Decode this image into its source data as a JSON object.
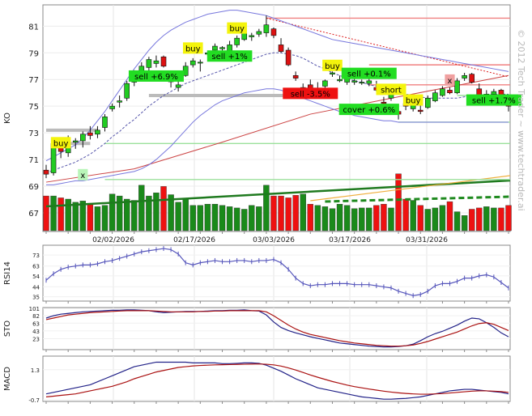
{
  "watermark": "© 2012 Tech Trader ~ www.techtrader.ai",
  "chart_data": [
    {
      "type": "candlestick",
      "panel": "price",
      "ylabel": "KO",
      "x_ticks": [
        "02/02/2026",
        "02/17/2026",
        "03/03/2026",
        "03/17/2026",
        "03/31/2026"
      ],
      "y_ticks": [
        67,
        69,
        71,
        73,
        75,
        77,
        79,
        81
      ],
      "ylim": [
        65.6,
        82.6
      ],
      "candles": [
        [
          70.2,
          70.6,
          69.6,
          69.9
        ],
        [
          70.0,
          72.6,
          69.8,
          72.2
        ],
        [
          72.0,
          72.4,
          71.1,
          71.6
        ],
        [
          71.5,
          72.8,
          71.2,
          72.0
        ],
        [
          72.3,
          72.6,
          71.8,
          72.4
        ],
        [
          72.4,
          73.1,
          71.9,
          72.9
        ],
        [
          73.0,
          73.5,
          72.5,
          72.8
        ],
        [
          72.9,
          73.5,
          72.6,
          73.2
        ],
        [
          73.4,
          74.4,
          73.1,
          74.2
        ],
        [
          74.8,
          75.2,
          74.6,
          75.0
        ],
        [
          75.3,
          75.8,
          74.9,
          75.4
        ],
        [
          75.6,
          76.9,
          75.4,
          76.7
        ],
        [
          76.8,
          77.7,
          76.5,
          77.6
        ],
        [
          77.3,
          78.3,
          77.0,
          78.0
        ],
        [
          77.9,
          78.7,
          77.6,
          78.5
        ],
        [
          78.2,
          78.8,
          77.9,
          78.4
        ],
        [
          78.7,
          78.8,
          77.9,
          78.0
        ],
        [
          76.9,
          77.4,
          76.4,
          76.9
        ],
        [
          76.4,
          77.3,
          76.1,
          76.6
        ],
        [
          77.3,
          78.3,
          77.2,
          78.0
        ],
        [
          78.1,
          78.6,
          77.9,
          78.4
        ],
        [
          78.3,
          78.5,
          77.6,
          78.3
        ],
        [
          78.9,
          79.1,
          78.8,
          79.0
        ],
        [
          79.2,
          79.7,
          79.1,
          79.5
        ],
        [
          79.3,
          79.5,
          79.0,
          79.4
        ],
        [
          79.1,
          79.9,
          79.0,
          79.6
        ],
        [
          79.6,
          80.3,
          79.4,
          80.1
        ],
        [
          80.0,
          80.7,
          79.9,
          80.5
        ],
        [
          80.2,
          80.5,
          79.9,
          80.3
        ],
        [
          80.4,
          80.8,
          80.2,
          80.6
        ],
        [
          80.5,
          81.8,
          80.2,
          81.1
        ],
        [
          80.8,
          80.9,
          80.1,
          80.3
        ],
        [
          79.6,
          80.1,
          79.0,
          79.1
        ],
        [
          79.2,
          79.4,
          78.0,
          78.1
        ],
        [
          77.3,
          77.6,
          76.9,
          77.1
        ],
        [
          75.9,
          76.7,
          75.7,
          76.4
        ],
        [
          76.6,
          77.0,
          76.1,
          76.3
        ],
        [
          75.9,
          76.8,
          75.6,
          76.1
        ],
        [
          76.5,
          77.0,
          76.3,
          76.9
        ],
        [
          77.4,
          77.6,
          77.2,
          77.5
        ],
        [
          76.9,
          77.3,
          76.8,
          77.0
        ],
        [
          76.8,
          77.3,
          76.6,
          77.2
        ],
        [
          76.8,
          77.1,
          76.6,
          76.9
        ],
        [
          76.8,
          77.0,
          76.6,
          76.8
        ],
        [
          76.7,
          77.1,
          76.5,
          76.9
        ],
        [
          76.4,
          76.9,
          76.1,
          76.2
        ],
        [
          75.3,
          75.7,
          75.0,
          75.2
        ],
        [
          75.6,
          76.4,
          75.4,
          76.1
        ],
        [
          74.6,
          74.9,
          74.0,
          74.4
        ],
        [
          75.2,
          75.7,
          74.7,
          75.0
        ],
        [
          74.8,
          75.6,
          74.6,
          75.3
        ],
        [
          74.7,
          75.2,
          74.4,
          74.6
        ],
        [
          74.9,
          75.8,
          74.8,
          75.6
        ],
        [
          75.4,
          76.2,
          75.3,
          76.0
        ],
        [
          75.8,
          76.5,
          75.7,
          76.3
        ],
        [
          76.2,
          76.4,
          75.9,
          76.0
        ],
        [
          76.0,
          77.1,
          75.9,
          76.9
        ],
        [
          77.1,
          77.5,
          76.9,
          77.3
        ],
        [
          77.4,
          77.5,
          76.7,
          76.8
        ],
        [
          76.3,
          76.7,
          75.2,
          75.5
        ],
        [
          75.4,
          76.2,
          75.2,
          75.9
        ],
        [
          75.9,
          76.3,
          75.5,
          76.1
        ],
        [
          76.2,
          76.3,
          75.1,
          75.3
        ],
        [
          75.1,
          75.6,
          74.6,
          75.0
        ]
      ],
      "volume_relative": [
        0.55,
        0.55,
        0.52,
        0.5,
        0.45,
        0.47,
        0.42,
        0.38,
        0.4,
        0.58,
        0.55,
        0.5,
        0.48,
        0.72,
        0.55,
        0.6,
        0.7,
        0.57,
        0.45,
        0.5,
        0.4,
        0.4,
        0.42,
        0.42,
        0.4,
        0.38,
        0.36,
        0.34,
        0.4,
        0.38,
        0.72,
        0.55,
        0.55,
        0.52,
        0.56,
        0.58,
        0.42,
        0.4,
        0.38,
        0.35,
        0.42,
        0.4,
        0.35,
        0.36,
        0.36,
        0.4,
        0.42,
        0.36,
        0.9,
        0.5,
        0.48,
        0.4,
        0.34,
        0.36,
        0.4,
        0.46,
        0.3,
        0.24,
        0.34,
        0.36,
        0.38,
        0.36,
        0.36,
        0.4
      ],
      "bollinger_upper": [
        70.9,
        71.2,
        71.5,
        71.8,
        72.1,
        72.6,
        73.2,
        73.9,
        74.6,
        75.4,
        76.2,
        77.0,
        77.8,
        78.5,
        79.2,
        79.8,
        80.3,
        80.7,
        81.0,
        81.3,
        81.5,
        81.7,
        81.9,
        82.0,
        82.1,
        82.2,
        82.2,
        82.1,
        82.0,
        81.9,
        81.8,
        81.6,
        81.4,
        81.2,
        81.0,
        80.8,
        80.6,
        80.4,
        80.2,
        80.0,
        79.9,
        79.8,
        79.7,
        79.6,
        79.5,
        79.4,
        79.3,
        79.2,
        79.1,
        79.0,
        78.9,
        78.8,
        78.7,
        78.6,
        78.5,
        78.4,
        78.3,
        78.2,
        78.1,
        78.0,
        77.9,
        77.8,
        77.7,
        77.6
      ],
      "bollinger_mid": [
        70.0,
        70.2,
        70.4,
        70.6,
        70.8,
        71.1,
        71.4,
        71.8,
        72.2,
        72.7,
        73.1,
        73.6,
        74.0,
        74.5,
        75.0,
        75.4,
        75.8,
        76.1,
        76.4,
        76.7,
        76.9,
        77.1,
        77.3,
        77.5,
        77.7,
        77.9,
        78.1,
        78.3,
        78.5,
        78.7,
        78.9,
        79.0,
        79.0,
        78.9,
        78.8,
        78.6,
        78.3,
        78.0,
        77.8,
        77.5,
        77.3,
        77.1,
        76.9,
        76.8,
        76.6,
        76.5,
        76.3,
        76.2,
        76.0,
        75.9,
        75.8,
        75.7,
        75.6,
        75.6,
        75.6,
        75.6,
        75.6,
        75.7,
        75.8,
        75.8,
        75.9,
        75.9,
        75.9,
        75.9
      ],
      "bollinger_lower": [
        69.1,
        69.1,
        69.2,
        69.3,
        69.4,
        69.4,
        69.5,
        69.6,
        69.7,
        69.8,
        69.9,
        70.0,
        70.1,
        70.3,
        70.6,
        71.0,
        71.5,
        72.0,
        72.6,
        73.2,
        73.8,
        74.3,
        74.7,
        75.1,
        75.4,
        75.6,
        75.8,
        76.0,
        76.1,
        76.2,
        76.3,
        76.3,
        76.2,
        76.0,
        75.8,
        75.6,
        75.4,
        75.2,
        75.0,
        74.8,
        74.6,
        74.5,
        74.3,
        74.2,
        74.1,
        74.0,
        73.9,
        73.9,
        73.8,
        73.8,
        73.8,
        73.8,
        73.8,
        73.8,
        73.8,
        73.8,
        73.8,
        73.8,
        73.8,
        73.8,
        73.8,
        73.8,
        73.8,
        73.8
      ],
      "ma_long": [
        [
          0,
          69.3
        ],
        [
          12,
          70.3
        ],
        [
          24,
          72.3
        ],
        [
          36,
          74.4
        ],
        [
          48,
          75.7
        ],
        [
          63,
          77.3
        ]
      ],
      "resistance_lines": [
        81.6,
        78.1,
        76.6
      ],
      "support_lines": [
        75.8,
        73.8,
        72.2,
        69.5
      ],
      "downtrend_line": [
        [
          30,
          81.6
        ],
        [
          63,
          77.2
        ]
      ],
      "signals": [
        {
          "label": "buy",
          "index": 2,
          "price": 72.2,
          "color": "#f4f40c"
        },
        {
          "label": "x",
          "index": 5,
          "price": 69.8,
          "color": "#b9f5b9"
        },
        {
          "label": "sell +6.9%",
          "index": 15,
          "price": 77.2,
          "color": "#22dd22"
        },
        {
          "label": "buy",
          "index": 20,
          "price": 79.3,
          "color": "#f4f40c"
        },
        {
          "label": "sell +1%",
          "index": 25,
          "price": 78.7,
          "color": "#22dd22"
        },
        {
          "label": "buy",
          "index": 26,
          "price": 80.8,
          "color": "#f4f40c"
        },
        {
          "label": "buy",
          "index": 39,
          "price": 78.0,
          "color": "#f4f40c"
        },
        {
          "label": "sell -3.5%",
          "index": 36,
          "price": 75.9,
          "color": "#ee1111"
        },
        {
          "label": "sell +0.1%",
          "index": 44,
          "price": 77.4,
          "color": "#22dd22"
        },
        {
          "label": "short",
          "index": 47,
          "price": 76.2,
          "color": "#f4f40c"
        },
        {
          "label": "buy",
          "index": 50,
          "price": 75.4,
          "color": "#f4f40c"
        },
        {
          "label": "cover +0.6%",
          "index": 44,
          "price": 74.7,
          "color": "#22dd22"
        },
        {
          "label": "x",
          "index": 55,
          "price": 76.9,
          "color": "#f0a0a0"
        },
        {
          "label": "sell +1.7%",
          "index": 61,
          "price": 75.4,
          "color": "#22dd22"
        }
      ]
    },
    {
      "type": "line",
      "panel": "rsi",
      "ylabel": "RSI14",
      "y_ticks": [
        73,
        63,
        54,
        44,
        35
      ],
      "ylim": [
        31,
        82
      ],
      "values": [
        50,
        56,
        60,
        62,
        63,
        64,
        64,
        65,
        67,
        68,
        70,
        72,
        74,
        76,
        77,
        78,
        79,
        78,
        74,
        66,
        64,
        66,
        67,
        68,
        67,
        67,
        68,
        68,
        67,
        68,
        68,
        69,
        66,
        60,
        52,
        47,
        45,
        46,
        46,
        47,
        47,
        47,
        46,
        46,
        46,
        45,
        44,
        43,
        40,
        38,
        36,
        37,
        40,
        45,
        47,
        47,
        49,
        52,
        52,
        54,
        55,
        53,
        48,
        43
      ]
    },
    {
      "type": "line",
      "panel": "stochastic",
      "ylabel": "STO",
      "y_ticks": [
        101,
        82,
        63,
        43,
        23
      ],
      "ylim": [
        -5,
        103
      ],
      "series": [
        {
          "values": [
            76,
            82,
            86,
            88,
            90,
            92,
            93,
            94,
            95,
            96,
            96,
            97,
            97,
            96,
            95,
            92,
            90,
            91,
            92,
            93,
            93,
            93,
            94,
            95,
            95,
            96,
            96,
            97,
            95,
            94,
            84,
            66,
            52,
            44,
            38,
            33,
            28,
            24,
            20,
            16,
            12,
            10,
            8,
            6,
            4,
            3,
            2,
            2,
            3,
            5,
            9,
            18,
            28,
            36,
            42,
            50,
            58,
            68,
            76,
            74,
            64,
            52,
            38,
            28
          ],
          "color": "#222288"
        },
        {
          "values": [
            72,
            76,
            80,
            84,
            86,
            88,
            90,
            91,
            92,
            93,
            94,
            95,
            95,
            95,
            95,
            94,
            93,
            92,
            92,
            92,
            92,
            93,
            93,
            94,
            94,
            95,
            95,
            95,
            95,
            95,
            92,
            82,
            70,
            58,
            48,
            40,
            34,
            30,
            26,
            22,
            18,
            15,
            12,
            10,
            8,
            6,
            5,
            4,
            4,
            5,
            7,
            11,
            16,
            22,
            28,
            34,
            40,
            48,
            56,
            62,
            64,
            60,
            52,
            44
          ],
          "color": "#aa1111"
        }
      ]
    },
    {
      "type": "line",
      "panel": "macd",
      "ylabel": "MACD",
      "y_ticks": [
        1.3,
        -0.7
      ],
      "ylim": [
        -0.8,
        2.2
      ],
      "series": [
        {
          "values": [
            -0.3,
            -0.2,
            -0.1,
            0.0,
            0.1,
            0.2,
            0.3,
            0.5,
            0.7,
            0.9,
            1.1,
            1.3,
            1.5,
            1.6,
            1.7,
            1.8,
            1.8,
            1.8,
            1.8,
            1.8,
            1.75,
            1.75,
            1.75,
            1.75,
            1.7,
            1.7,
            1.72,
            1.75,
            1.75,
            1.72,
            1.6,
            1.4,
            1.2,
            0.95,
            0.7,
            0.5,
            0.3,
            0.1,
            0.0,
            -0.1,
            -0.2,
            -0.3,
            -0.4,
            -0.5,
            -0.55,
            -0.6,
            -0.65,
            -0.65,
            -0.62,
            -0.6,
            -0.55,
            -0.5,
            -0.4,
            -0.3,
            -0.2,
            -0.1,
            -0.05,
            0.0,
            0.0,
            -0.05,
            -0.1,
            -0.15,
            -0.2,
            -0.3
          ],
          "color": "#222288"
        },
        {
          "values": [
            -0.5,
            -0.45,
            -0.4,
            -0.35,
            -0.3,
            -0.2,
            -0.1,
            0.0,
            0.1,
            0.2,
            0.35,
            0.5,
            0.7,
            0.85,
            1.0,
            1.15,
            1.25,
            1.35,
            1.45,
            1.5,
            1.55,
            1.58,
            1.6,
            1.62,
            1.63,
            1.64,
            1.65,
            1.66,
            1.67,
            1.68,
            1.66,
            1.62,
            1.54,
            1.42,
            1.28,
            1.12,
            0.95,
            0.8,
            0.66,
            0.52,
            0.4,
            0.28,
            0.18,
            0.1,
            0.02,
            -0.05,
            -0.12,
            -0.18,
            -0.23,
            -0.27,
            -0.3,
            -0.32,
            -0.32,
            -0.3,
            -0.28,
            -0.24,
            -0.2,
            -0.16,
            -0.12,
            -0.1,
            -0.1,
            -0.12,
            -0.15,
            -0.2
          ],
          "color": "#aa1111"
        }
      ]
    }
  ]
}
